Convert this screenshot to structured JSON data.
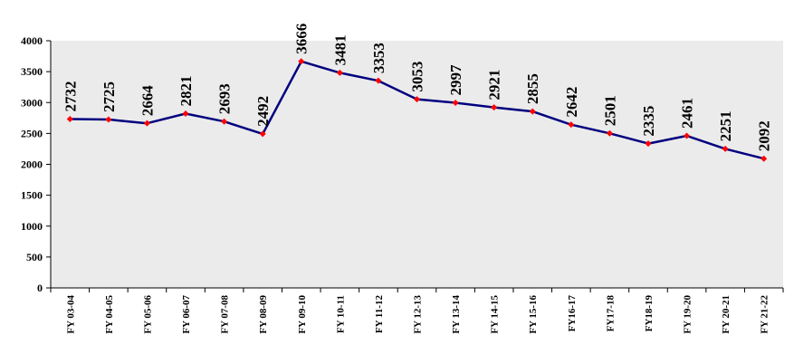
{
  "chart_data": {
    "type": "line",
    "categories": [
      "FY 03-04",
      "FY 04-05",
      "FY 05-06",
      "FY 06-07",
      "FY 07-08",
      "FY 08-09",
      "FY 09-10",
      "FY 10-11",
      "FY 11-12",
      "FY 12-13",
      "FY 13-14",
      "FY 14-15",
      "FY 15-16",
      "FY16-17",
      "FY17-18",
      "FY18-19",
      "FY 19-20",
      "FY 20-21",
      "FY 21-22"
    ],
    "values": [
      2732,
      2725,
      2664,
      2821,
      2693,
      2492,
      3666,
      3481,
      3353,
      3053,
      2997,
      2921,
      2855,
      2642,
      2501,
      2335,
      2461,
      2251,
      2092
    ],
    "ylim": [
      0,
      4000
    ],
    "yticks": [
      0,
      500,
      1000,
      1500,
      2000,
      2500,
      3000,
      3500,
      4000
    ],
    "grid": false,
    "legend": "none",
    "colors": {
      "line": "#00007f",
      "marker": "#ff0000",
      "plot_background": "#ebebeb"
    }
  }
}
